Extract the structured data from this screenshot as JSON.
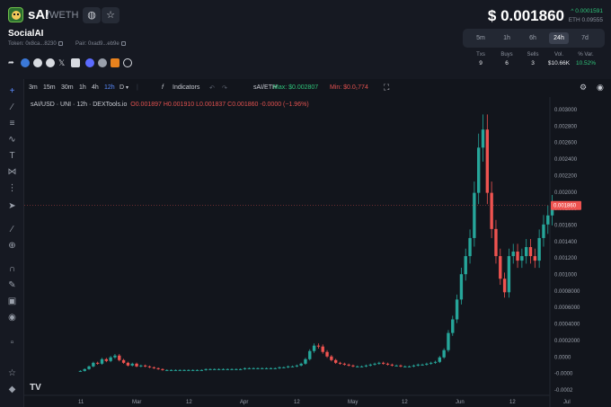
{
  "header": {
    "symbol": "sAI",
    "pair_suffix": "/WETH",
    "token_name": "SocialAI",
    "token_address": "Token: 0x8ca...8230",
    "pair_address": "Pair: 0xad9...eb9e",
    "price": "$ 0.001860",
    "price_change": "^ 0.0001591",
    "eth_price": "ETH 0.09555"
  },
  "timeframes": [
    {
      "label": "5m"
    },
    {
      "label": "1h"
    },
    {
      "label": "6h"
    },
    {
      "label": "24h"
    },
    {
      "label": "7d"
    }
  ],
  "stats": {
    "headers": [
      "Txs",
      "Buys",
      "Sells",
      "Vol.",
      "% Var."
    ],
    "values": [
      "9",
      "6",
      "3",
      "$10.66K",
      "10.52%"
    ]
  },
  "toolbar": {
    "intervals": [
      "3m",
      "15m",
      "30m",
      "1h",
      "4h",
      "12h",
      "D"
    ],
    "indicators": "Indicators",
    "pair": "sAI/ETH",
    "max": "Max: $0.002807",
    "min": "Min: $0.0₁774"
  },
  "legend": {
    "title": "sAI/USD · UNI · 12h · DEXTools.io",
    "o": "O0.001897",
    "h": "H0.001910",
    "l": "L0.001837",
    "c": "C0.001860",
    "chg": "-0.0000 (−1.96%)"
  },
  "colors": {
    "up": "#26a69a",
    "down": "#ef5350",
    "accent": "#5b8cff",
    "positive": "#2fc47a"
  },
  "chart_data": {
    "type": "candlestick",
    "current_price": 0.00186,
    "current_price_label": "0.001860",
    "ylim": [
      -0.0002,
      0.003
    ],
    "y_ticks": [
      "0.003000",
      "0.002800",
      "0.002600",
      "0.002400",
      "0.002200",
      "0.002000",
      "0.001800",
      "0.001600",
      "0.001400",
      "0.001200",
      "0.001000",
      "0.0008000",
      "0.0006000",
      "0.0004000",
      "0.0002000",
      "0.0000",
      "-0.0000",
      "-0.0002"
    ],
    "x_ticks": [
      "11",
      "Mar",
      "12",
      "Apr",
      "12",
      "May",
      "12",
      "Jun",
      "12",
      "Jul"
    ],
    "series": [
      {
        "values": [
          3e-05,
          5e-05,
          8e-05,
          0.00012,
          0.00011,
          0.00016,
          0.00014,
          0.00018,
          0.0002,
          0.00015,
          0.00012,
          9e-05,
          0.00011,
          8e-05,
          9e-05,
          8e-05,
          7e-05,
          6e-05,
          5e-05,
          4e-05,
          4e-05,
          4e-05,
          4e-05,
          4e-05,
          4e-05,
          4e-05,
          4e-05,
          4e-05,
          4e-05,
          5e-05,
          5e-05,
          5e-05,
          5e-05,
          5e-05,
          5e-05,
          5e-05,
          5e-05,
          5e-05,
          6e-05,
          6e-05,
          6e-05,
          6e-05,
          6e-05,
          6e-05,
          6e-05,
          6e-05,
          7e-05,
          7e-05,
          8e-05,
          8e-05,
          9e-05,
          0.00011,
          0.00016,
          0.00025,
          0.00031,
          0.0003,
          0.00024,
          0.00019,
          0.00015,
          0.00012,
          0.00011,
          0.0001,
          9e-05,
          8e-05,
          8e-05,
          8e-05,
          9e-05,
          0.0001,
          0.00011,
          0.00012,
          0.00011,
          0.0001,
          9e-05,
          9e-05,
          8e-05,
          8e-05,
          8e-05,
          9e-05,
          0.0001,
          0.0001,
          0.00011,
          0.00012,
          0.00013,
          0.00018,
          0.00026,
          0.00045,
          0.0006,
          0.00082,
          0.0011,
          0.0013,
          0.0015,
          0.002,
          0.0025,
          0.0027,
          0.002,
          0.0016,
          0.0013,
          0.00105,
          0.0009,
          0.0013,
          0.00135,
          0.00125,
          0.0013,
          0.0014,
          0.0013,
          0.00125,
          0.0015,
          0.00165,
          0.00175,
          0.00186
        ]
      }
    ]
  }
}
